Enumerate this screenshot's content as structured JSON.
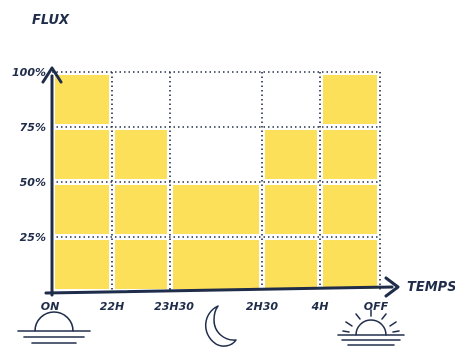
{
  "chart_data": {
    "type": "bar",
    "title": "",
    "ylabel": "FLUX",
    "xlabel": "TEMPS",
    "y_ticks": [
      "25%",
      "50%",
      "75%",
      "100%"
    ],
    "x_ticks": [
      "ON",
      "22H",
      "23H30",
      "2H30",
      "4H",
      "OFF"
    ],
    "ylim": [
      0,
      100
    ],
    "grid": "dotted",
    "bar_color": "#fde05a",
    "series": [
      {
        "values": [
          100,
          75,
          50,
          75,
          100
        ]
      }
    ],
    "icons": [
      "sunset-icon",
      "moon-icon",
      "sunrise-icon"
    ]
  },
  "colors": {
    "axis": "#1f2d4a",
    "fill": "#fde05a",
    "grid": "#1f2d4a"
  }
}
